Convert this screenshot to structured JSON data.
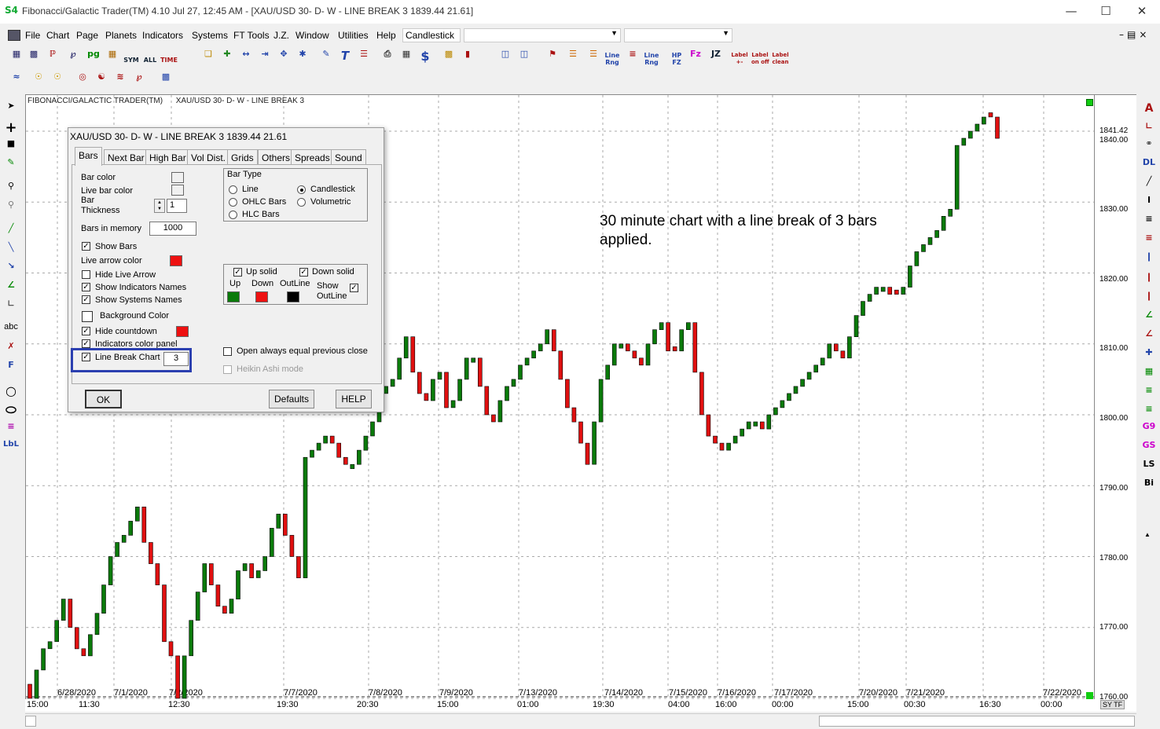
{
  "window": {
    "title": "Fibonacci/Galactic Trader(TM) 4.10 Jul 27, 12:45 AM - [XAU/USD 30- D- W - LINE BREAK 3 1839.44     21.61]",
    "app_icon": "S4"
  },
  "menu": {
    "items": [
      "File",
      "Chart",
      "Page",
      "Planets",
      "Indicators",
      "Systems",
      "FT Tools",
      "J.Z.",
      "Window",
      "Utilities",
      "Help"
    ],
    "chart_type_combo": "Candlestick",
    "combo2": "",
    "combo3": ""
  },
  "toolbar_labels": {
    "sym": "SYM",
    "all": "ALL",
    "time": "TIME",
    "pg": "pg",
    "line_rng": "Line\nRng",
    "hp_fz": "HP\nFZ",
    "fz": "Fᴢ",
    "jz": "JZ",
    "label_pm": "Label\n+-",
    "label_onoff": "Label\non off",
    "label_clean": "Label\nclean"
  },
  "left_tools": {
    "abc": "abc",
    "f": "F",
    "lbl": "LbL"
  },
  "right_tools": {
    "a": "A",
    "dl": "DL",
    "i": "I",
    "g9": "G9",
    "gs": "GS",
    "ls": "LS",
    "bi": "Bi"
  },
  "chart": {
    "header": "FIBONACCI/GALACTIC TRADER(TM)      XAU/USD 30- D- W - LINE BREAK 3",
    "annotation": "30 minute chart with a line break of 3 bars applied.",
    "price_labels": [
      "1841.42",
      "1840.00",
      "1830.00",
      "1820.00",
      "1810.00",
      "1800.00",
      "1790.00",
      "1780.00",
      "1770.00",
      "1760.00"
    ],
    "date_labels": [
      "6/28/2020",
      "7/1/2020",
      "7/2/2020",
      "7/7/2020",
      "7/8/2020",
      "7/9/2020",
      "7/13/2020",
      "7/14/2020",
      "7/15/2020",
      "7/16/2020",
      "7/17/2020",
      "7/20/2020",
      "7/21/2020",
      "7/22/2020"
    ],
    "time_labels": [
      "15:00",
      "11:30",
      "12:30",
      "19:30",
      "20:30",
      "15:00",
      "01:00",
      "19:30",
      "04:00",
      "16:00",
      "00:00",
      "15:00",
      "00:30",
      "16:30",
      "00:00"
    ],
    "corner_label": "SY TF",
    "up_color": "#0a7a0a",
    "down_color": "#e01010"
  },
  "chart_data": {
    "type": "line_break_candlestick",
    "ylim": [
      1760,
      1843
    ],
    "last_price": 1841.42,
    "closes": [
      1760,
      1764,
      1767,
      1768,
      1771,
      1774,
      1770,
      1767,
      1766,
      1769,
      1772,
      1776,
      1780,
      1782,
      1783,
      1785,
      1787,
      1782,
      1779,
      1776,
      1768,
      1766,
      1760,
      1766,
      1771,
      1775,
      1779,
      1776,
      1773,
      1772,
      1774,
      1778,
      1779,
      1777,
      1778,
      1780,
      1784,
      1786,
      1783,
      1780,
      1777,
      1794,
      1795,
      1796,
      1797,
      1796,
      1794,
      1793,
      1793,
      1795,
      1797,
      1799,
      1803,
      1804,
      1805,
      1808,
      1811,
      1806,
      1803,
      1802,
      1805,
      1806,
      1801,
      1802,
      1805,
      1808,
      1808,
      1804,
      1800,
      1799,
      1802,
      1804,
      1805,
      1807,
      1808,
      1809,
      1810,
      1812,
      1809,
      1805,
      1801,
      1799,
      1796,
      1793,
      1799,
      1805,
      1807,
      1810,
      1810,
      1809,
      1808,
      1807,
      1810,
      1812,
      1813,
      1809,
      1809,
      1812,
      1813,
      1806,
      1800,
      1797,
      1796,
      1795,
      1796,
      1797,
      1798,
      1799,
      1799,
      1798,
      1800,
      1801,
      1802,
      1803,
      1804,
      1805,
      1806,
      1807,
      1808,
      1810,
      1809,
      1808,
      1811,
      1814,
      1816,
      1817,
      1818,
      1818,
      1817,
      1817,
      1818,
      1821,
      1823,
      1824,
      1825,
      1826,
      1828,
      1829,
      1838,
      1839,
      1840,
      1841,
      1842,
      1842,
      1839
    ],
    "directions": [
      "down",
      "up",
      "up",
      "up",
      "up",
      "up",
      "down",
      "down",
      "down",
      "up",
      "up",
      "up",
      "up",
      "up",
      "up",
      "up",
      "up",
      "down",
      "down",
      "down",
      "down",
      "down",
      "down",
      "up",
      "up",
      "up",
      "up",
      "down",
      "down",
      "down",
      "up",
      "up",
      "up",
      "down",
      "up",
      "up",
      "up",
      "up",
      "down",
      "down",
      "down",
      "up",
      "up",
      "up",
      "up",
      "down",
      "down",
      "down",
      "up",
      "up",
      "up",
      "up",
      "up",
      "up",
      "up",
      "up",
      "up",
      "down",
      "down",
      "down",
      "up",
      "up",
      "down",
      "up",
      "up",
      "up",
      "up",
      "down",
      "down",
      "down",
      "up",
      "up",
      "up",
      "up",
      "up",
      "up",
      "up",
      "up",
      "down",
      "down",
      "down",
      "down",
      "down",
      "down",
      "up",
      "up",
      "up",
      "up",
      "up",
      "down",
      "down",
      "down",
      "up",
      "up",
      "up",
      "down",
      "down",
      "up",
      "up",
      "down",
      "down",
      "down",
      "down",
      "down",
      "up",
      "up",
      "up",
      "up",
      "up",
      "down",
      "up",
      "up",
      "up",
      "up",
      "up",
      "up",
      "up",
      "up",
      "up",
      "up",
      "down",
      "down",
      "up",
      "up",
      "up",
      "up",
      "up",
      "up",
      "down",
      "down",
      "up",
      "up",
      "up",
      "up",
      "up",
      "up",
      "up",
      "up",
      "up",
      "up",
      "up",
      "up",
      "up",
      "down",
      "down"
    ]
  },
  "dialog": {
    "title": "XAU/USD 30- D- W - LINE BREAK 3 1839.44     21.61",
    "tabs": [
      "Bars",
      "Next Bar",
      "High Bar",
      "Vol Dist.",
      "Grids",
      "Others",
      "Spreads",
      "Sound"
    ],
    "bar_color": "Bar color",
    "live_bar_color": "Live bar color",
    "bar_thickness": "Bar\nThickness",
    "bar_thickness_value": "1",
    "bars_in_memory": "Bars in memory",
    "bars_in_memory_value": "1000",
    "show_bars": "Show Bars",
    "live_arrow_color": "Live arrow color",
    "hide_live_arrow": "Hide Live Arrow",
    "show_indicators_names": "Show Indicators Names",
    "show_systems_names": "Show Systems Names",
    "background_color": "Background Color",
    "hide_countdown": "Hide countdown",
    "indicators_color_panel": "Indicators color panel",
    "line_break_chart": "Line Break Chart",
    "line_break_value": "3",
    "bar_type_title": "Bar Type",
    "bar_types": [
      "Line",
      "OHLC Bars",
      "HLC Bars",
      "Candlestick",
      "Volumetric"
    ],
    "up_solid": "Up solid",
    "down_solid": "Down solid",
    "up": "Up",
    "down": "Down",
    "outline": "OutLine",
    "show_outline": "Show\nOutLine",
    "open_always_equal": "Open always equal previous close",
    "heikin_ashi": "Heikin Ashi mode",
    "ok": "OK",
    "defaults": "Defaults",
    "help": "HELP",
    "colors": {
      "bar": "#000000",
      "live_bar": "#000000",
      "live_arrow": "#ee1111",
      "countdown": "#ee1111",
      "up": "#0a7a0a",
      "down": "#ee1111",
      "outline": "#000000"
    }
  }
}
